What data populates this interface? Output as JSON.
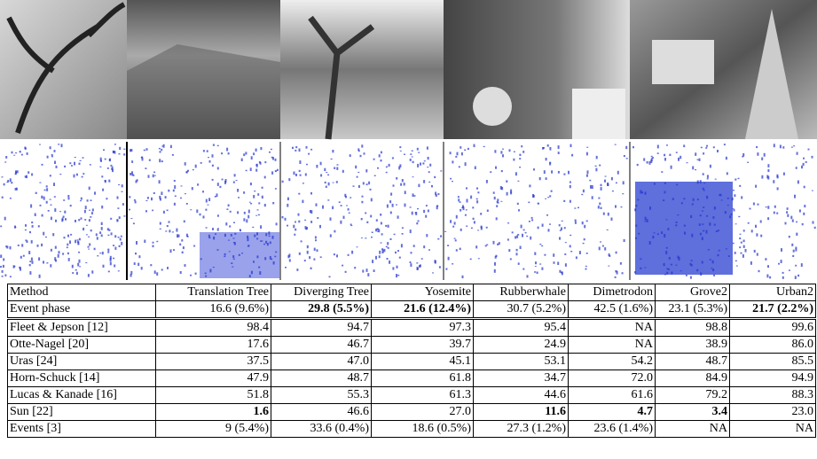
{
  "table": {
    "header": [
      "Method",
      "Translation Tree",
      "Diverging Tree",
      "Yosemite",
      "Rubberwhale",
      "Dimetrodon",
      "Grove2",
      "Urban2"
    ],
    "rows": [
      {
        "cells": [
          "Event phase",
          "16.6 (9.6%)",
          "29.8 (5.5%)",
          "21.6 (12.4%)",
          "30.7 (5.2%)",
          "42.5 (1.6%)",
          "23.1 (5.3%)",
          "21.7 (2.2%)"
        ],
        "bold": [
          2,
          3,
          7
        ]
      },
      {
        "cells": [
          "Fleet & Jepson [12]",
          "98.4",
          "94.7",
          "97.3",
          "95.4",
          "NA",
          "98.8",
          "99.6"
        ],
        "bold": []
      },
      {
        "cells": [
          "Otte-Nagel [20]",
          "17.6",
          "46.7",
          "39.7",
          "24.9",
          "NA",
          "38.9",
          "86.0"
        ],
        "bold": []
      },
      {
        "cells": [
          "Uras [24]",
          "37.5",
          "47.0",
          "45.1",
          "53.1",
          "54.2",
          "48.7",
          "85.5"
        ],
        "bold": []
      },
      {
        "cells": [
          "Horn-Schuck [14]",
          "47.9",
          "48.7",
          "61.8",
          "34.7",
          "72.0",
          "84.9",
          "94.9"
        ],
        "bold": []
      },
      {
        "cells": [
          "Lucas & Kanade [16]",
          "51.8",
          "55.3",
          "61.3",
          "44.6",
          "61.6",
          "79.2",
          "88.3"
        ],
        "bold": []
      },
      {
        "cells": [
          "Sun [22]",
          "1.6",
          "46.6",
          "27.0",
          "11.6",
          "4.7",
          "3.4",
          "23.0"
        ],
        "bold": [
          1,
          4,
          5,
          6
        ]
      },
      {
        "cells": [
          "Events [3]",
          "9 (5.4%)",
          "33.6 (0.4%)",
          "18.6 (0.5%)",
          "27.3 (1.2%)",
          "23.6 (1.4%)",
          "NA",
          "NA"
        ],
        "bold": []
      }
    ]
  }
}
